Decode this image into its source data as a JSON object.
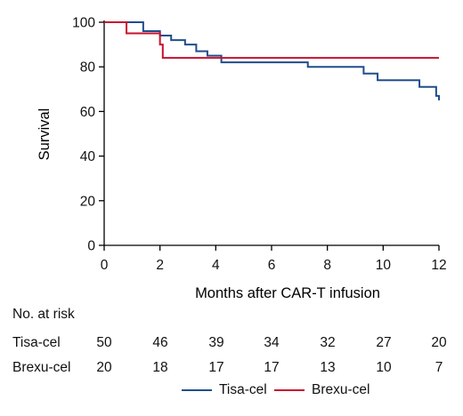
{
  "chart_data": {
    "type": "line",
    "step": true,
    "xlabel": "Months after CAR-T infusion",
    "ylabel": "Survival",
    "xlim": [
      0,
      12
    ],
    "ylim": [
      0,
      100
    ],
    "xticks": [
      0,
      2,
      4,
      6,
      8,
      10,
      12
    ],
    "yticks": [
      0,
      20,
      40,
      60,
      80,
      100
    ],
    "grid": false,
    "legend_position": "bottom-right",
    "series": [
      {
        "name": "Tisa-cel",
        "color": "#1f4e8c",
        "x": [
          0,
          1.4,
          2.0,
          2.4,
          2.9,
          3.3,
          3.7,
          4.2,
          7.3,
          9.3,
          9.8,
          11.3,
          11.9,
          12.0
        ],
        "y": [
          100,
          96,
          94,
          92,
          90,
          87,
          85,
          82,
          80,
          77,
          74,
          71,
          67,
          65
        ]
      },
      {
        "name": "Brexu-cel",
        "color": "#c8102e",
        "x": [
          0,
          0.8,
          2.0,
          2.1,
          12.0
        ],
        "y": [
          100,
          95,
          90,
          84,
          84
        ]
      }
    ],
    "risk_table": {
      "title": "No. at risk",
      "times": [
        0,
        2,
        4,
        6,
        8,
        10,
        12
      ],
      "rows": [
        {
          "label": "Tisa-cel",
          "values": [
            "50",
            "46",
            "39",
            "34",
            "32",
            "27",
            "20"
          ]
        },
        {
          "label": "Brexu-cel",
          "values": [
            "20",
            "18",
            "17",
            "17",
            "13",
            "10",
            "7"
          ]
        }
      ]
    }
  }
}
